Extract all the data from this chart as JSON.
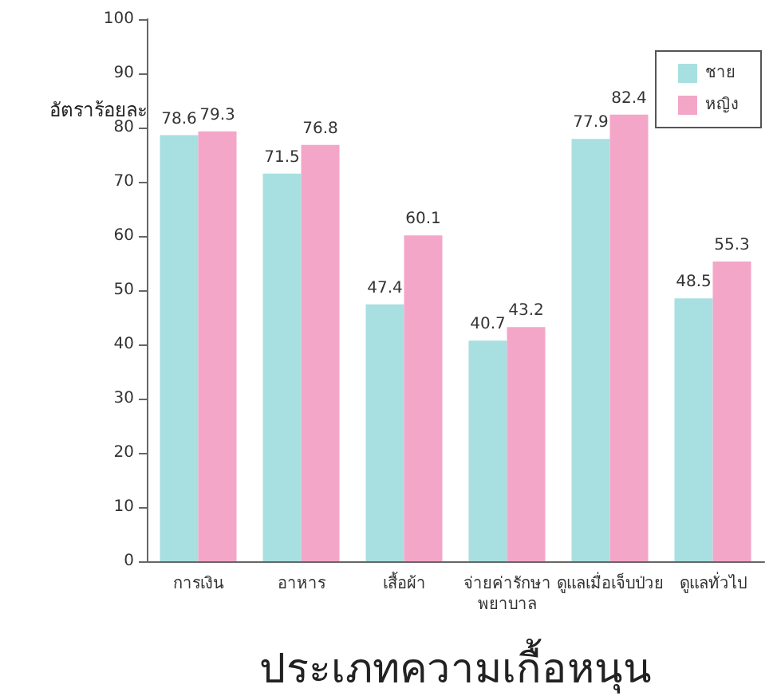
{
  "chart_data": {
    "type": "bar",
    "ylabel": "อัตราร้อยละ",
    "xlabel": "ประเภทความเกื้อหนุน",
    "categories": [
      "การเงิน",
      "อาหาร",
      "เสื้อผ้า",
      "จ่ายค่ารักษา\nพยาบาล",
      "ดูแลเมื่อเจ็บป่วย",
      "ดูแลทั่วไป"
    ],
    "series": [
      {
        "name": "ชาย",
        "color": "#a8dfe0",
        "values": [
          78.6,
          71.5,
          47.4,
          40.7,
          77.9,
          48.5
        ]
      },
      {
        "name": "หญิง",
        "color": "#f4a6c8",
        "values": [
          79.3,
          76.8,
          60.1,
          43.2,
          82.4,
          55.3
        ]
      }
    ],
    "ylim": [
      0,
      100
    ],
    "yticks": [
      0,
      10,
      20,
      30,
      40,
      50,
      60,
      70,
      80,
      90,
      100
    ],
    "data_labels": true,
    "legend": "top right",
    "grid": false
  }
}
